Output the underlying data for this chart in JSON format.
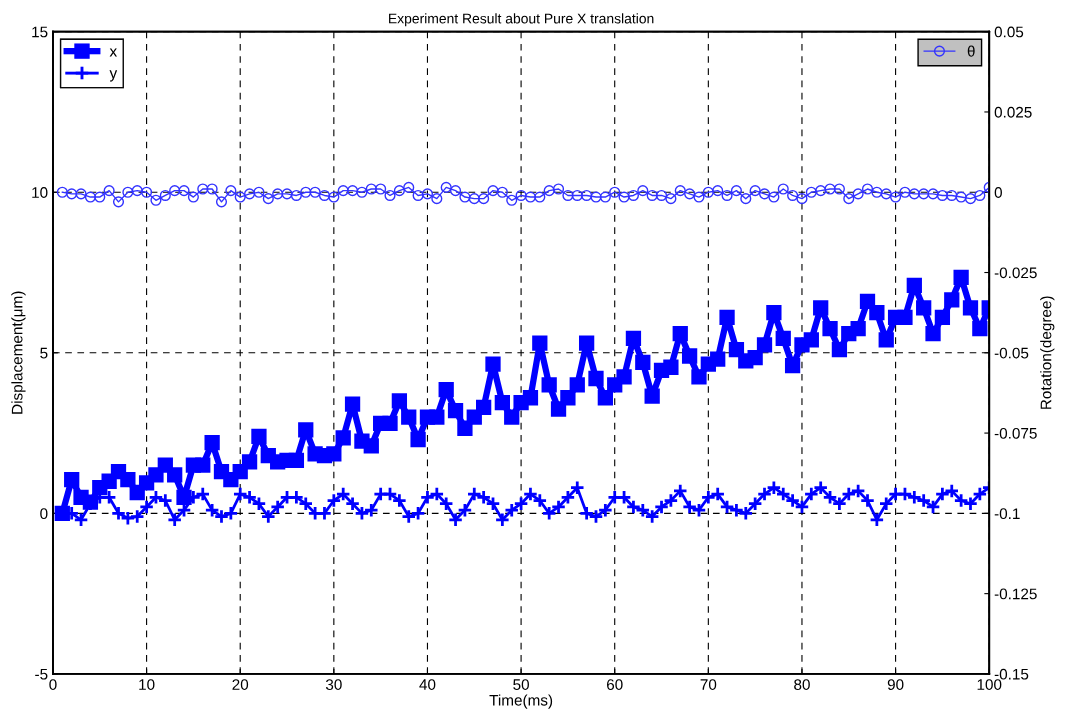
{
  "chart_data": {
    "type": "line",
    "title": "Experiment Result about Pure X translation",
    "xlabel": "Time(ms)",
    "ylabel": "Displacement(μm)",
    "y2label": "Rotation(degree)",
    "x": [
      1,
      2,
      3,
      4,
      5,
      6,
      7,
      8,
      9,
      10,
      11,
      12,
      13,
      14,
      15,
      16,
      17,
      18,
      19,
      20,
      21,
      22,
      23,
      24,
      25,
      26,
      27,
      28,
      29,
      30,
      31,
      32,
      33,
      34,
      35,
      36,
      37,
      38,
      39,
      40,
      41,
      42,
      43,
      44,
      45,
      46,
      47,
      48,
      49,
      50,
      51,
      52,
      53,
      54,
      55,
      56,
      57,
      58,
      59,
      60,
      61,
      62,
      63,
      64,
      65,
      66,
      67,
      68,
      69,
      70,
      71,
      72,
      73,
      74,
      75,
      76,
      77,
      78,
      79,
      80,
      81,
      82,
      83,
      84,
      85,
      86,
      87,
      88,
      89,
      90,
      91,
      92,
      93,
      94,
      95,
      96,
      97,
      98,
      99,
      100
    ],
    "series": [
      {
        "name": "x",
        "color": "#0000ff",
        "marker": "square",
        "values": [
          0,
          1.05,
          0.5,
          0.35,
          0.8,
          1.0,
          1.3,
          1.05,
          0.65,
          0.95,
          1.2,
          1.5,
          1.2,
          0.5,
          1.5,
          1.5,
          2.2,
          1.3,
          1.05,
          1.3,
          1.6,
          2.4,
          1.8,
          1.6,
          1.65,
          1.65,
          2.6,
          1.85,
          1.8,
          1.85,
          2.35,
          3.4,
          2.25,
          2.1,
          2.8,
          2.8,
          3.5,
          3.0,
          2.3,
          3.0,
          3.0,
          3.85,
          3.2,
          2.65,
          3.0,
          3.3,
          4.65,
          3.45,
          3.0,
          3.45,
          3.6,
          5.3,
          4.0,
          3.25,
          3.6,
          4.0,
          5.3,
          4.2,
          3.6,
          4.0,
          4.25,
          5.45,
          4.7,
          3.65,
          4.45,
          4.55,
          5.6,
          4.9,
          4.25,
          4.65,
          4.8,
          6.1,
          5.1,
          4.75,
          4.85,
          5.25,
          6.25,
          5.45,
          4.6,
          5.25,
          5.4,
          6.4,
          5.75,
          5.1,
          5.6,
          5.75,
          6.6,
          6.25,
          5.4,
          6.1,
          6.1,
          7.1,
          6.4,
          5.6,
          6.1,
          6.65,
          7.35,
          6.4,
          5.75,
          6.4
        ]
      },
      {
        "name": "y",
        "color": "#0000ff",
        "marker": "cross",
        "values": [
          0,
          0,
          -0.2,
          0.3,
          0.5,
          0.5,
          0,
          -0.15,
          -0.1,
          0.2,
          0.5,
          0.4,
          -0.2,
          0.1,
          0.5,
          0.6,
          0.1,
          -0.1,
          0,
          0.6,
          0.5,
          0.3,
          -0.1,
          0.2,
          0.5,
          0.5,
          0.3,
          0,
          0,
          0.4,
          0.6,
          0.3,
          0,
          0.1,
          0.6,
          0.6,
          0.4,
          -0.1,
          0,
          0.5,
          0.6,
          0.3,
          -0.2,
          0.1,
          0.6,
          0.5,
          0.3,
          -0.2,
          0.1,
          0.3,
          0.6,
          0.4,
          0,
          0.2,
          0.5,
          0.8,
          0,
          -0.1,
          0.1,
          0.5,
          0.5,
          0.2,
          0.1,
          -0.1,
          0.2,
          0.4,
          0.7,
          0.2,
          0.1,
          0.5,
          0.6,
          0.2,
          0.1,
          0,
          0.3,
          0.6,
          0.8,
          0.6,
          0.4,
          0.2,
          0.6,
          0.8,
          0.5,
          0.3,
          0.6,
          0.7,
          0.4,
          -0.2,
          0.3,
          0.6,
          0.6,
          0.5,
          0.4,
          0.2,
          0.6,
          0.7,
          0.4,
          0.3,
          0.6,
          0.8
        ]
      },
      {
        "name": "θ",
        "color": "#3333ff",
        "marker": "circle",
        "axis": "y2",
        "values": [
          0,
          -0.0005,
          -0.0005,
          -0.0015,
          -0.0015,
          0.0005,
          -0.003,
          0,
          0.0005,
          0,
          -0.0025,
          -0.001,
          0.0005,
          0.0005,
          -0.0015,
          0.001,
          0.001,
          -0.003,
          0.0005,
          -0.0015,
          -0.0005,
          0,
          -0.002,
          -0.0005,
          -0.0005,
          -0.001,
          0,
          0,
          -0.001,
          -0.0015,
          0.0005,
          0.0005,
          0,
          0.001,
          0.001,
          -0.001,
          0.0005,
          0.0015,
          -0.001,
          -0.0005,
          -0.002,
          0.0015,
          0.0005,
          -0.0015,
          -0.002,
          -0.002,
          0.0005,
          0,
          -0.0025,
          -0.001,
          -0.0015,
          -0.0015,
          0.0005,
          0.001,
          -0.001,
          -0.001,
          -0.001,
          -0.0015,
          -0.0015,
          0,
          -0.0015,
          -0.001,
          0.0005,
          -0.001,
          -0.001,
          -0.002,
          0.0005,
          -0.0005,
          -0.0015,
          0,
          0.0005,
          -0.001,
          0.0005,
          -0.002,
          0.0005,
          -0.0005,
          -0.0015,
          0.001,
          -0.001,
          -0.002,
          0,
          0.0005,
          0.001,
          0.001,
          -0.002,
          -0.0005,
          0.001,
          0,
          -0.0005,
          -0.0015,
          0,
          -0.0005,
          -0.0005,
          -0.0005,
          -0.001,
          -0.001,
          -0.0015,
          -0.002,
          -0.001,
          0.0015
        ]
      }
    ],
    "xlim": [
      0,
      100
    ],
    "xticks": [
      0,
      10,
      20,
      30,
      40,
      50,
      60,
      70,
      80,
      90,
      100
    ],
    "ylim": [
      -5,
      15
    ],
    "yticks": [
      -5,
      0,
      5,
      10,
      15
    ],
    "y2lim": [
      -0.15,
      0.05
    ],
    "y2ticks": [
      -0.15,
      -0.125,
      -0.1,
      -0.075,
      -0.05,
      -0.025,
      0,
      0.025,
      0.05
    ],
    "grid": true,
    "legend": "top left",
    "line_style": "solid"
  }
}
